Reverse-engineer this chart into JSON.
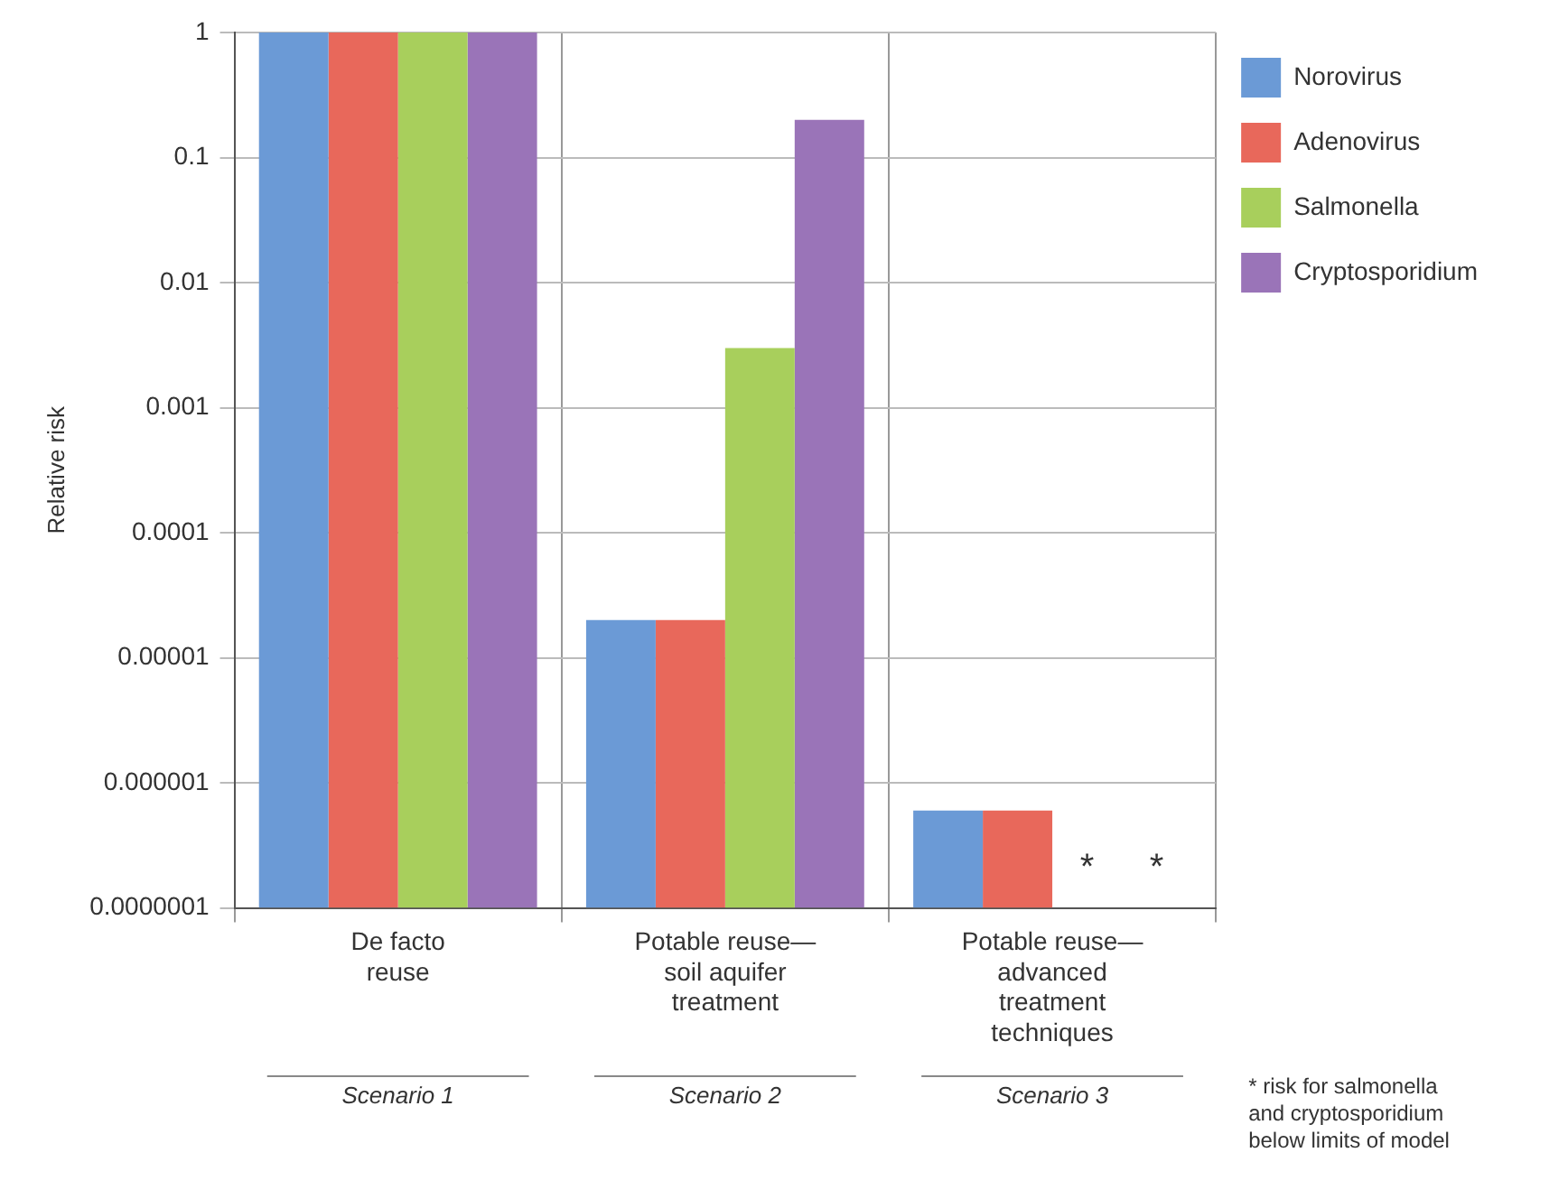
{
  "chart_data": {
    "type": "bar",
    "ylabel": "Relative risk",
    "categories": [
      "De facto\nreuse",
      "Potable reuse—\nsoil aquifer\ntreatment",
      "Potable reuse—\nadvanced\ntreatment\ntechniques"
    ],
    "series": [
      {
        "name": "Norovirus",
        "color": "#6b9ad6",
        "values": [
          1,
          2e-05,
          6e-07
        ]
      },
      {
        "name": "Adenovirus",
        "color": "#e8685b",
        "values": [
          1,
          2e-05,
          6e-07
        ]
      },
      {
        "name": "Salmonella",
        "color": "#a8cf5c",
        "values": [
          1,
          0.003,
          null
        ],
        "value_labels": [
          null,
          null,
          "*"
        ]
      },
      {
        "name": "Cryptosporidium",
        "color": "#9a74b8",
        "values": [
          1,
          0.2,
          null
        ],
        "value_labels": [
          null,
          null,
          "*"
        ]
      }
    ],
    "log": true,
    "ylim": [
      1e-07,
      1
    ],
    "yticks": [
      1,
      0.1,
      0.01,
      0.001,
      0.0001,
      {
        "value": 1e-05,
        "label": "0.00001"
      },
      {
        "value": 1e-06,
        "label": "0.000001"
      },
      {
        "value": 1e-07,
        "label": "0.0000001"
      }
    ],
    "grid": true,
    "legend": "top right",
    "annotations": [
      "Scenario 1",
      "Scenario 2",
      "Scenario 3",
      "* risk for salmonella\nand cryptosporidium\nbelow limits of model"
    ]
  }
}
